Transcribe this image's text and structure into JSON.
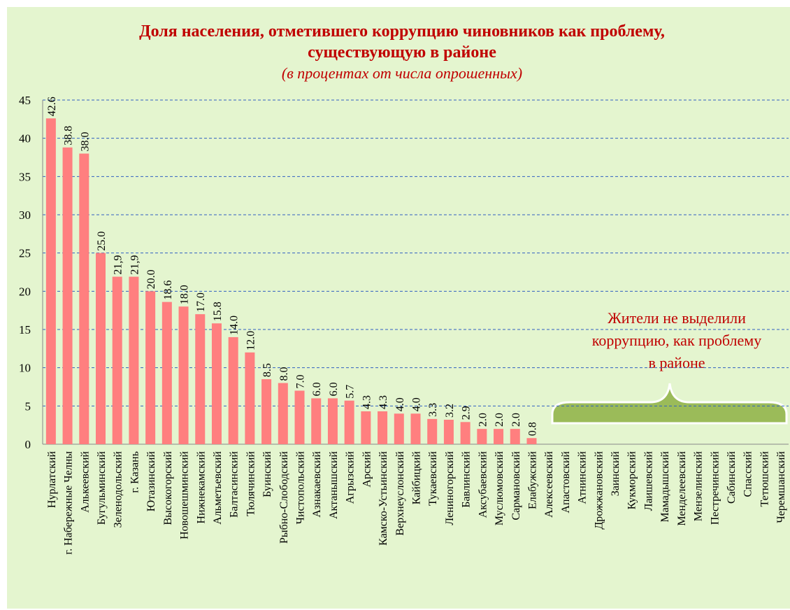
{
  "chart_data": {
    "type": "bar",
    "title": [
      "Доля населения, отметившего коррупцию чиновников как проблему,",
      "существующую в районе"
    ],
    "subtitle": "(в процентах от числа опрошенных)",
    "annotation": [
      "Жители не выделили",
      "коррупцию, как проблему",
      "в районе"
    ],
    "categories": [
      "Нурлатский",
      "г. Набережные Челны",
      "Алькеевский",
      "Бугульминский",
      "Зеленодольский",
      "г. Казань",
      "Ютазинский",
      "Высокогорский",
      "Новошешминский",
      "Нижнекамский",
      "Альметьевский",
      "Балтасинский",
      "Тюлячинский",
      "Буинский",
      "Рыбно-Слободский",
      "Чистопольский",
      "Азнакаевский",
      "Актанышский",
      "Агрызский",
      "Арский",
      "Камско-Устьинский",
      "Верхнеуслонский",
      "Кайбицкий",
      "Тукаевский",
      "Лениногорский",
      "Бавлинский",
      "Аксубаевский",
      "Муслюмовский",
      "Сармановский",
      "Елабужский",
      "Алексеевский",
      "Апастовский",
      "Атнинский",
      "Дрожжановский",
      "Заинский",
      "Кукморский",
      "Лаишевский",
      "Мамадышский",
      "Менделеевский",
      "Мензелинский",
      "Пестречинский",
      "Сабинский",
      "Спасский",
      "Тетюшский",
      "Черемшанский"
    ],
    "values": [
      42.6,
      38.8,
      38.0,
      25.0,
      21.9,
      21.9,
      20.0,
      18.6,
      18.0,
      17.0,
      15.8,
      14.0,
      12.0,
      8.5,
      8.0,
      7.0,
      6.0,
      6.0,
      5.7,
      4.3,
      4.3,
      4.0,
      4.0,
      3.3,
      3.2,
      2.9,
      2.0,
      2.0,
      2.0,
      0.8,
      null,
      null,
      null,
      null,
      null,
      null,
      null,
      null,
      null,
      null,
      null,
      null,
      null,
      null,
      null
    ],
    "value_labels": [
      "42.6",
      "38.8",
      "38.0",
      "25.0",
      "21,9",
      "21,9",
      "20.0",
      "18.6",
      "18.0",
      "17.0",
      "15.8",
      "14.0",
      "12.0",
      "8.5",
      "8.0",
      "7.0",
      "6.0",
      "6.0",
      "5.7",
      "4.3",
      "4.3",
      "4.0",
      "4.0",
      "3.3",
      "3.2",
      "2.9",
      "2.0",
      "2.0",
      "2.0",
      "0.8",
      null,
      null,
      null,
      null,
      null,
      null,
      null,
      null,
      null,
      null,
      null,
      null,
      null,
      null,
      null
    ],
    "color": "#ff7f7f",
    "ylim": [
      0,
      45
    ],
    "yticks": [
      0,
      5,
      10,
      15,
      20,
      25,
      30,
      35,
      40,
      45
    ],
    "grid": true
  }
}
